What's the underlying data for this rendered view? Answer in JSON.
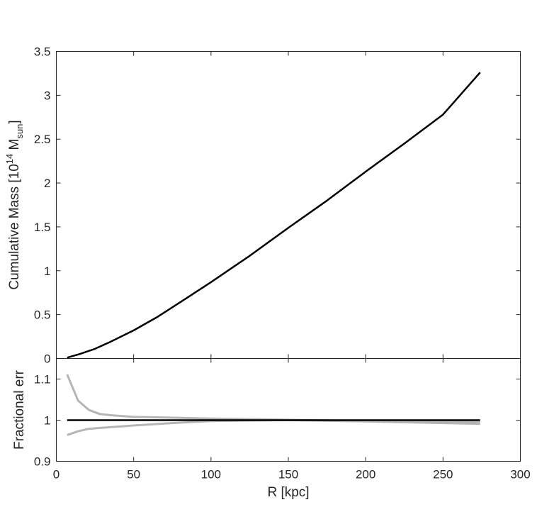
{
  "chart_data": [
    {
      "type": "line",
      "title": "",
      "ylabel": {
        "prefix": "Cumulative Mass [10",
        "exp": "14",
        "mid": " M",
        "sub": "sun",
        "suffix": "]"
      },
      "xlim": [
        0,
        300
      ],
      "ylim": [
        0,
        3.5
      ],
      "yticks": [
        0,
        0.5,
        1,
        1.5,
        2,
        2.5,
        3,
        3.5
      ],
      "ytick_labels": [
        "0",
        "0.5",
        "1",
        "1.5",
        "2",
        "2.5",
        "3",
        "3.5"
      ],
      "grid": false,
      "series": [
        {
          "color": "#000000",
          "x": [
            7,
            15,
            25,
            35,
            50,
            65,
            80,
            100,
            125,
            150,
            175,
            200,
            225,
            250,
            274
          ],
          "y": [
            0.01,
            0.05,
            0.11,
            0.19,
            0.32,
            0.47,
            0.64,
            0.87,
            1.17,
            1.49,
            1.8,
            2.13,
            2.45,
            2.78,
            3.26
          ]
        }
      ]
    },
    {
      "type": "line",
      "xlabel": "R [kpc]",
      "ylabel": "Fractional err",
      "xlim": [
        0,
        300
      ],
      "ylim": [
        0.9,
        1.15
      ],
      "xticks": [
        0,
        50,
        100,
        150,
        200,
        250,
        300
      ],
      "xtick_labels": [
        "0",
        "50",
        "100",
        "150",
        "200",
        "250",
        "300"
      ],
      "yticks": [
        0.9,
        1,
        1.1
      ],
      "ytick_labels": [
        "0.9",
        "1",
        "1.1"
      ],
      "grid": false,
      "series": [
        {
          "color": "#b5b5b5",
          "x": [
            7,
            14,
            21,
            28,
            35,
            50,
            75,
            100,
            150,
            200,
            250,
            274
          ],
          "y": [
            1.111,
            1.048,
            1.025,
            1.015,
            1.012,
            1.008,
            1.006,
            1.004,
            1.001,
            0.998,
            0.996,
            0.995
          ]
        },
        {
          "color": "#b5b5b5",
          "x": [
            7,
            14,
            21,
            28,
            35,
            50,
            75,
            100,
            150,
            200,
            250,
            274
          ],
          "y": [
            0.964,
            0.973,
            0.979,
            0.981,
            0.983,
            0.987,
            0.993,
            0.998,
            1.0,
            0.997,
            0.993,
            0.991
          ]
        },
        {
          "color": "#000000",
          "x": [
            7,
            274
          ],
          "y": [
            1,
            1
          ]
        }
      ]
    }
  ]
}
